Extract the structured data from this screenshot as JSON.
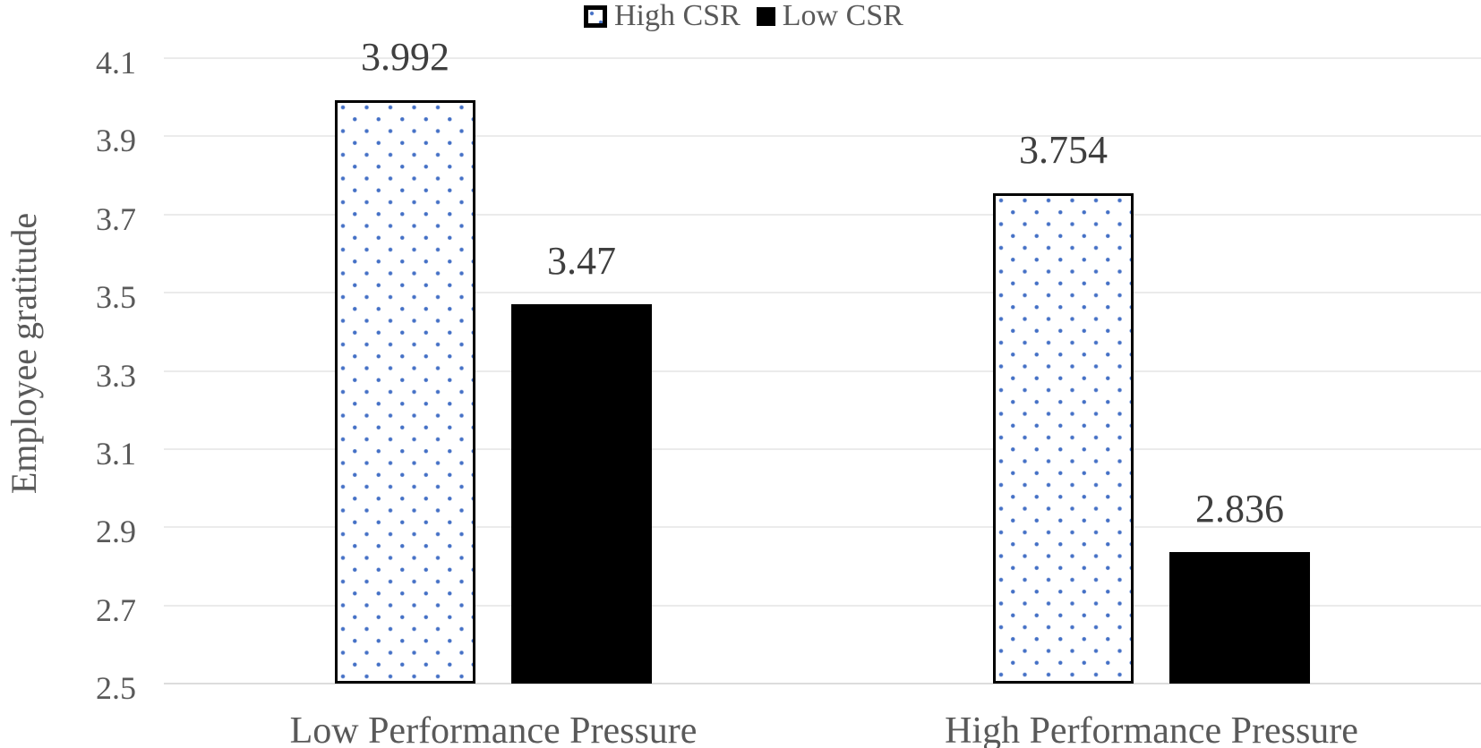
{
  "chart_data": {
    "type": "bar",
    "title": "",
    "xlabel": "",
    "ylabel": "Employee gratitude",
    "categories": [
      "Low Performance Pressure",
      "High Performance Pressure"
    ],
    "series": [
      {
        "name": "High CSR",
        "pattern": "blue-dotted-white-black-border",
        "values": [
          3.992,
          3.754
        ],
        "value_labels": [
          "3.992",
          "3.754"
        ]
      },
      {
        "name": "Low CSR",
        "pattern": "solid-black",
        "values": [
          3.47,
          2.836
        ],
        "value_labels": [
          "3.47",
          "2.836"
        ]
      }
    ],
    "ylim": [
      2.5,
      4.1
    ],
    "yticks": [
      2.5,
      2.7,
      2.9,
      3.1,
      3.3,
      3.5,
      3.7,
      3.9,
      4.1
    ],
    "ytick_labels": [
      "2.5",
      "2.7",
      "2.9",
      "3.1",
      "3.3",
      "3.5",
      "3.7",
      "3.9",
      "4.1"
    ],
    "grid": true,
    "legend_position": "top-center"
  },
  "colors": {
    "dot_blue": "#4470C6",
    "bar_black": "#000000",
    "bar_border": "#000000",
    "gridline": "#EBEBEB",
    "baseline": "#DCDCDC",
    "axis_text": "#595959",
    "data_label_text": "#3F3F3F",
    "background": "#FFFFFF"
  }
}
